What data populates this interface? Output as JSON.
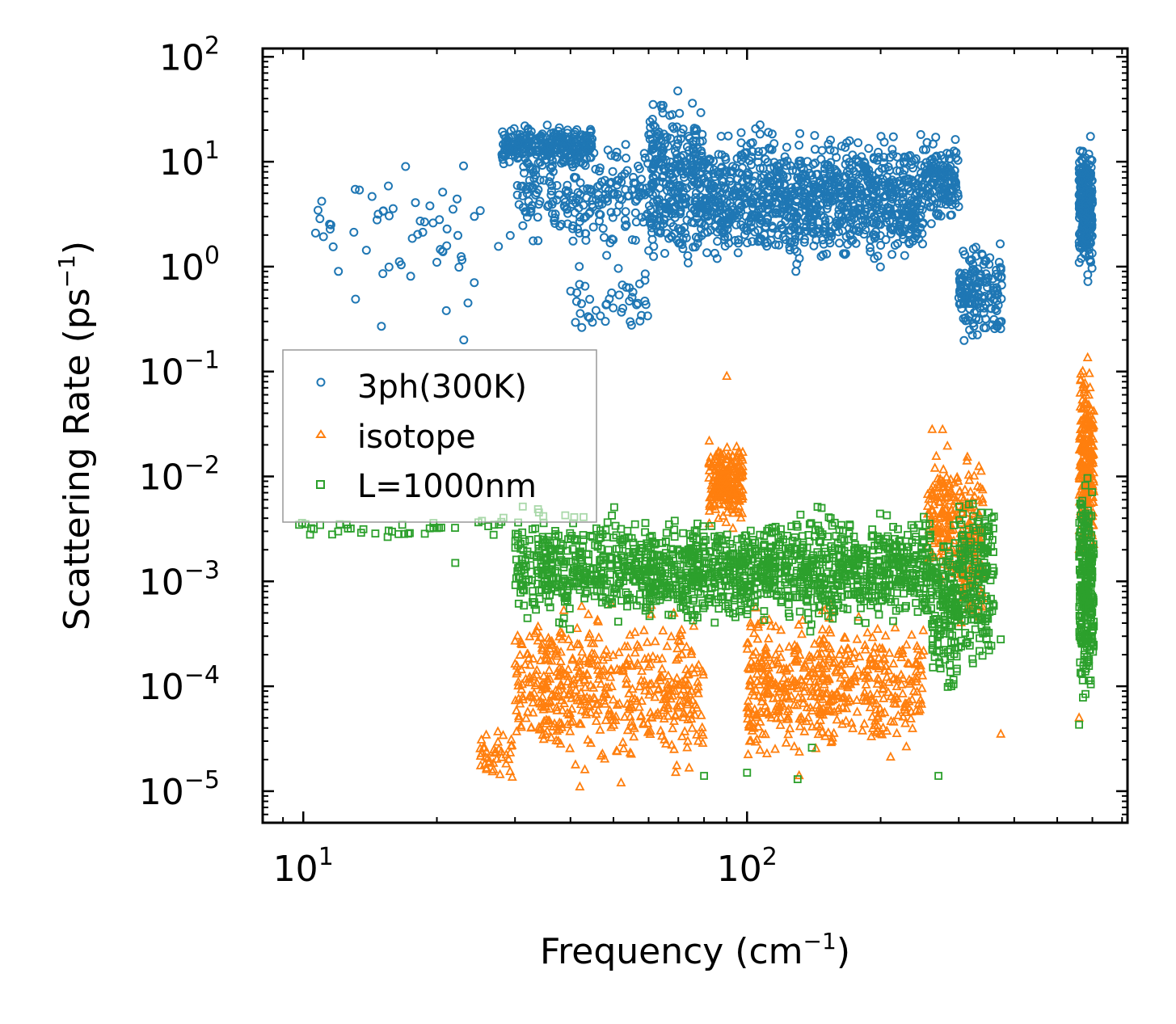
{
  "chart_data": {
    "type": "scatter",
    "title": "",
    "xlabel": "Frequency (cm",
    "xlabel_sup": "−1",
    "xlabel_end": ")",
    "ylabel": "Scattering Rate (ps",
    "ylabel_sup": "−1",
    "ylabel_end": ")",
    "xscale": "log",
    "yscale": "log",
    "xlim": [
      8.1,
      720
    ],
    "ylim": [
      5e-06,
      120
    ],
    "x_ticks": [
      {
        "value": 10,
        "base": "10",
        "exp": "1"
      },
      {
        "value": 100,
        "base": "10",
        "exp": "2"
      }
    ],
    "y_ticks": [
      {
        "value": 1e-05,
        "base": "10",
        "exp": "−5"
      },
      {
        "value": 0.0001,
        "base": "10",
        "exp": "−4"
      },
      {
        "value": 0.001,
        "base": "10",
        "exp": "−3"
      },
      {
        "value": 0.01,
        "base": "10",
        "exp": "−2"
      },
      {
        "value": 0.1,
        "base": "10",
        "exp": "−1"
      },
      {
        "value": 1,
        "base": "10",
        "exp": "0"
      },
      {
        "value": 10,
        "base": "10",
        "exp": "1"
      },
      {
        "value": 100,
        "base": "10",
        "exp": "2"
      }
    ],
    "legend_position": "center-left",
    "series": [
      {
        "name": "3ph(300K)",
        "marker": "circle",
        "color": "#1f77b4",
        "clusters": [
          {
            "x": [
              10.5,
              12
            ],
            "y": [
              0.9,
              4.5
            ],
            "n": 8
          },
          {
            "x": [
              12,
              30
            ],
            "y": [
              0.3,
              15
            ],
            "n": 45
          },
          {
            "x": [
              28,
              45
            ],
            "y": [
              8,
              25
            ],
            "n": 260
          },
          {
            "x": [
              30,
              60
            ],
            "y": [
              1.2,
              20
            ],
            "n": 220
          },
          {
            "x": [
              40,
              60
            ],
            "y": [
              0.15,
              1.5
            ],
            "n": 45
          },
          {
            "x": [
              60,
              80
            ],
            "y": [
              0.5,
              65
            ],
            "n": 320
          },
          {
            "x": [
              80,
              140
            ],
            "y": [
              0.7,
              30
            ],
            "n": 480
          },
          {
            "x": [
              140,
              250
            ],
            "y": [
              0.8,
              25
            ],
            "n": 520
          },
          {
            "x": [
              250,
              300
            ],
            "y": [
              2,
              20
            ],
            "n": 140
          },
          {
            "x": [
              300,
              375
            ],
            "y": [
              0.15,
              2.2
            ],
            "n": 160
          },
          {
            "x": [
              560,
              600
            ],
            "y": [
              0.55,
              25
            ],
            "n": 260
          }
        ],
        "points": [
          [
            11.0,
            4.2
          ],
          [
            12.0,
            0.9
          ],
          [
            17.0,
            9.0
          ],
          [
            15.0,
            0.27
          ],
          [
            20.0,
            1.1
          ],
          [
            21.0,
            0.38
          ],
          [
            23.0,
            0.2
          ],
          [
            23.5,
            0.45
          ]
        ]
      },
      {
        "name": "isotope",
        "marker": "triangle",
        "color": "#ff7f0e",
        "clusters": [
          {
            "x": [
              25,
              30
            ],
            "y": [
              1e-05,
              5e-05
            ],
            "n": 40
          },
          {
            "x": [
              30,
              60
            ],
            "y": [
              1.2e-05,
              0.0008
            ],
            "n": 360
          },
          {
            "x": [
              60,
              80
            ],
            "y": [
              1e-05,
              0.0008
            ],
            "n": 140
          },
          {
            "x": [
              82,
              98
            ],
            "y": [
              0.003,
              0.025
            ],
            "n": 220
          },
          {
            "x": [
              100,
              160
            ],
            "y": [
              1.2e-05,
              0.0008
            ],
            "n": 320
          },
          {
            "x": [
              160,
              250
            ],
            "y": [
              1.5e-05,
              0.0008
            ],
            "n": 200
          },
          {
            "x": [
              255,
              300
            ],
            "y": [
              0.0006,
              0.03
            ],
            "n": 150
          },
          {
            "x": [
              300,
              340
            ],
            "y": [
              0.0002,
              0.03
            ],
            "n": 140
          },
          {
            "x": [
              560,
              605
            ],
            "y": [
              0.001,
              0.22
            ],
            "n": 220
          }
        ],
        "points": [
          [
            90.0,
            0.09
          ],
          [
            373.0,
            3.5e-05
          ],
          [
            560.0,
            5e-05
          ],
          [
            42.0,
            1.1e-05
          ],
          [
            52.0,
            1.2e-05
          ]
        ]
      },
      {
        "name": "L=1000nm",
        "marker": "square",
        "color": "#2ca02c",
        "clusters": [
          {
            "x": [
              9.5,
              30
            ],
            "y": [
              0.0025,
              0.0045
            ],
            "n": 40
          },
          {
            "x": [
              30,
              60
            ],
            "y": [
              0.0003,
              0.006
            ],
            "n": 420
          },
          {
            "x": [
              60,
              100
            ],
            "y": [
              0.0003,
              0.005
            ],
            "n": 380
          },
          {
            "x": [
              100,
              260
            ],
            "y": [
              0.0003,
              0.006
            ],
            "n": 700
          },
          {
            "x": [
              260,
              300
            ],
            "y": [
              6e-05,
              0.005
            ],
            "n": 160
          },
          {
            "x": [
              300,
              360
            ],
            "y": [
              0.0001,
              0.011
            ],
            "n": 180
          },
          {
            "x": [
              560,
              605
            ],
            "y": [
              4.5e-05,
              0.016
            ],
            "n": 260
          }
        ],
        "points": [
          [
            22.0,
            0.0015
          ],
          [
            80.0,
            1.4e-05
          ],
          [
            100.0,
            1.5e-05
          ],
          [
            140.0,
            2.6e-05
          ],
          [
            130.0,
            1.3e-05
          ],
          [
            270.0,
            1.4e-05
          ],
          [
            560.0,
            4.3e-05
          ],
          [
            373.0,
            0.00028
          ]
        ]
      }
    ]
  }
}
